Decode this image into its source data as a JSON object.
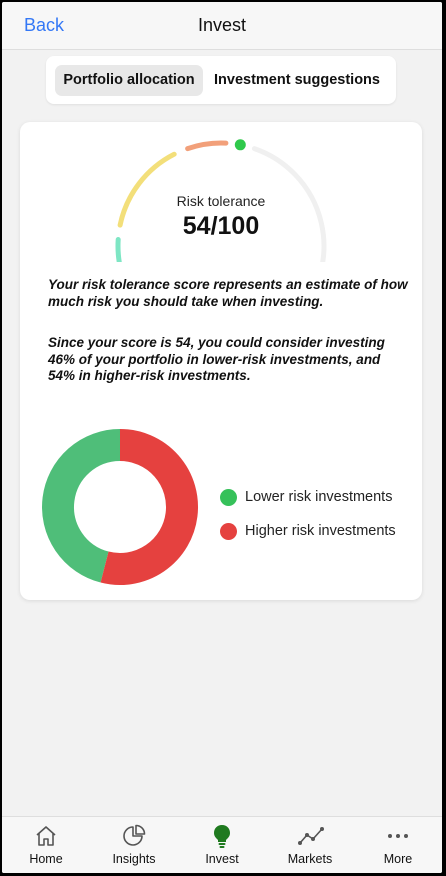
{
  "header": {
    "back_label": "Back",
    "title": "Invest"
  },
  "segments": {
    "active_label": "Portfolio allocation",
    "other_label": "Investment suggestions"
  },
  "risk": {
    "label": "Risk tolerance",
    "score_text": "54/100",
    "score": 54,
    "max": 100,
    "gauge_colors": [
      "#7ee6c4",
      "#f3df7a",
      "#f2a07a",
      "#f0f0f0"
    ],
    "indicator_color": "#2fc94b"
  },
  "description": {
    "paragraph_1": "Your risk tolerance score represents an estimate of how much risk you should take when investing.",
    "paragraph_2": "Since your score is 54, you could consider investing 46% of your portfolio in lower-risk investments, and 54% in higher-risk investments."
  },
  "allocation": {
    "series": [
      {
        "name": "Lower risk investments",
        "percent": 46,
        "color": "#4fbe79"
      },
      {
        "name": "Higher risk investments",
        "percent": 54,
        "color": "#e5413f"
      }
    ],
    "legend_dot_colors": [
      "#36c15a",
      "#e5413f"
    ]
  },
  "tabbar": {
    "items": [
      {
        "label": "Home",
        "icon": "home-icon"
      },
      {
        "label": "Insights",
        "icon": "pie-chart-icon"
      },
      {
        "label": "Invest",
        "icon": "lightbulb-icon",
        "active": true
      },
      {
        "label": "Markets",
        "icon": "line-chart-icon"
      },
      {
        "label": "More",
        "icon": "more-dots-icon"
      }
    ],
    "active_color": "#1f7a1f"
  }
}
